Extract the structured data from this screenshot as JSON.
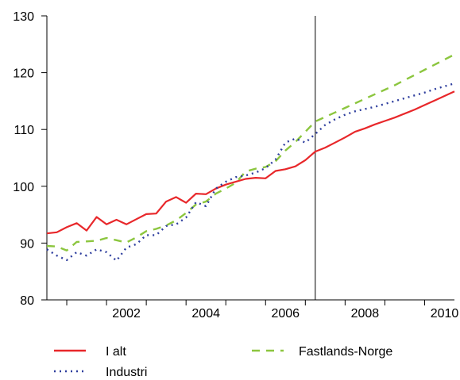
{
  "chart_data": {
    "type": "line",
    "title": "",
    "xlabel": "",
    "ylabel": "",
    "ylim": [
      80,
      130
    ],
    "xlim": [
      2000.5,
      2010.75
    ],
    "yticks": [
      80,
      90,
      100,
      110,
      120,
      130
    ],
    "xticks": [
      2002,
      2004,
      2006,
      2008,
      2010
    ],
    "grid": false,
    "legend_position": "bottom",
    "forecast_divider_x": 2007.25,
    "series": [
      {
        "name": "I alt",
        "color": "#e8272a",
        "dash": "solid",
        "x": [
          2000.5,
          2000.75,
          2001.0,
          2001.25,
          2001.5,
          2001.75,
          2002.0,
          2002.25,
          2002.5,
          2002.75,
          2003.0,
          2003.25,
          2003.5,
          2003.75,
          2004.0,
          2004.25,
          2004.5,
          2004.75,
          2005.0,
          2005.25,
          2005.5,
          2005.75,
          2006.0,
          2006.25,
          2006.5,
          2006.75,
          2007.0,
          2007.25,
          2007.5,
          2007.75,
          2008.0,
          2008.25,
          2008.5,
          2008.75,
          2009.0,
          2009.25,
          2009.5,
          2009.75,
          2010.0,
          2010.25,
          2010.5,
          2010.75
        ],
        "values": [
          91.7,
          91.9,
          92.8,
          93.5,
          92.2,
          94.6,
          93.3,
          94.1,
          93.3,
          94.2,
          95.1,
          95.2,
          97.3,
          98.1,
          97.1,
          98.7,
          98.6,
          99.6,
          100.3,
          100.8,
          101.3,
          101.5,
          101.4,
          102.7,
          103.0,
          103.5,
          104.6,
          106.1,
          106.8,
          107.7,
          108.6,
          109.6,
          110.2,
          110.9,
          111.5,
          112.1,
          112.8,
          113.5,
          114.3,
          115.1,
          115.9,
          116.7
        ]
      },
      {
        "name": "Fastlands-Norge",
        "color": "#8cc63f",
        "dash": "long-dash",
        "x": [
          2000.5,
          2000.75,
          2001.0,
          2001.25,
          2001.5,
          2001.75,
          2002.0,
          2002.25,
          2002.5,
          2002.75,
          2003.0,
          2003.25,
          2003.5,
          2003.75,
          2004.0,
          2004.25,
          2004.5,
          2004.75,
          2005.0,
          2005.25,
          2005.5,
          2005.75,
          2006.0,
          2006.25,
          2006.5,
          2006.75,
          2007.0,
          2007.25,
          2007.5,
          2007.75,
          2008.0,
          2008.25,
          2008.5,
          2008.75,
          2009.0,
          2009.25,
          2009.5,
          2009.75,
          2010.0,
          2010.25,
          2010.5,
          2010.75
        ],
        "values": [
          89.5,
          89.4,
          88.7,
          90.2,
          90.3,
          90.4,
          90.9,
          90.5,
          90.1,
          91.0,
          92.1,
          92.5,
          93.1,
          94.0,
          95.3,
          96.8,
          97.3,
          98.7,
          99.6,
          100.6,
          102.6,
          103.1,
          103.4,
          104.4,
          106.3,
          107.8,
          109.6,
          111.4,
          112.2,
          113.0,
          113.8,
          114.6,
          115.4,
          116.2,
          117.0,
          117.8,
          118.7,
          119.6,
          120.5,
          121.4,
          122.3,
          123.2
        ]
      },
      {
        "name": "Industri",
        "color": "#2e3e9e",
        "dash": "dotted",
        "x": [
          2000.5,
          2000.75,
          2001.0,
          2001.25,
          2001.5,
          2001.75,
          2002.0,
          2002.25,
          2002.5,
          2002.75,
          2003.0,
          2003.25,
          2003.5,
          2003.75,
          2004.0,
          2004.25,
          2004.5,
          2004.75,
          2005.0,
          2005.25,
          2005.5,
          2005.75,
          2006.0,
          2006.25,
          2006.5,
          2006.75,
          2007.0,
          2007.25,
          2007.5,
          2007.75,
          2008.0,
          2008.25,
          2008.5,
          2008.75,
          2009.0,
          2009.25,
          2009.5,
          2009.75,
          2010.0,
          2010.25,
          2010.5,
          2010.75
        ],
        "values": [
          88.9,
          87.8,
          87.0,
          88.4,
          87.8,
          88.9,
          88.4,
          86.9,
          89.2,
          89.8,
          91.4,
          91.4,
          93.0,
          93.3,
          94.5,
          97.2,
          96.5,
          99.6,
          100.8,
          101.6,
          101.9,
          102.4,
          103.2,
          104.7,
          107.7,
          108.4,
          107.7,
          109.2,
          110.8,
          111.8,
          112.6,
          113.2,
          113.6,
          114.0,
          114.5,
          115.0,
          115.5,
          116.0,
          116.5,
          117.1,
          117.6,
          118.1
        ]
      }
    ],
    "legend": [
      {
        "label": "I alt",
        "series": 0
      },
      {
        "label": "Fastlands-Norge",
        "series": 1
      },
      {
        "label": "Industri",
        "series": 2
      }
    ]
  }
}
